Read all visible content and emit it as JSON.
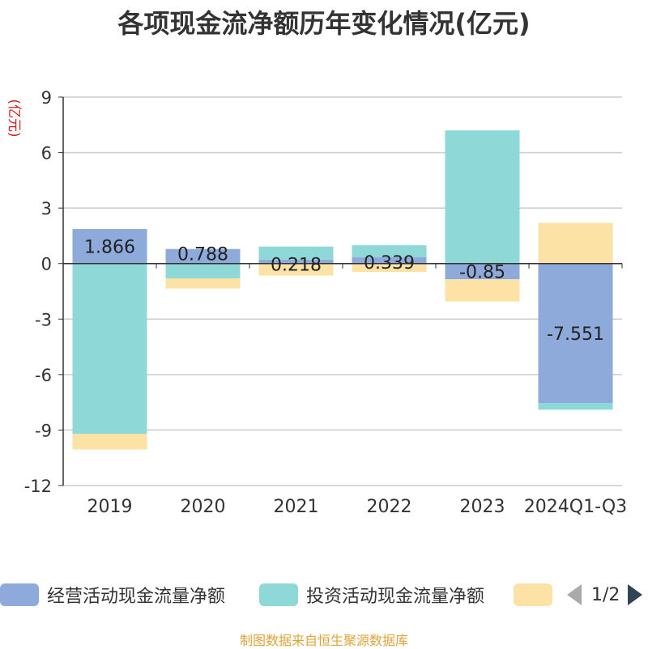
{
  "chart_data": {
    "type": "bar",
    "title": "各项现金流净额历年变化情况(亿元)",
    "ylabel": "(亿元)",
    "categories": [
      "2019",
      "2020",
      "2021",
      "2022",
      "2023",
      "2024Q1-Q3"
    ],
    "ylim": [
      -12,
      9
    ],
    "yticks": [
      9,
      6,
      3,
      0,
      -3,
      -6,
      -9,
      -12
    ],
    "grid": true,
    "stacked": true,
    "legend_position": "bottom",
    "series": [
      {
        "name": "经营活动现金流量净额",
        "color": "#8eaadb",
        "values": [
          1.866,
          0.788,
          0.218,
          0.339,
          -0.85,
          -7.551
        ],
        "labels": [
          "1.866",
          "0.788",
          "0.218",
          "0.339",
          "-0.85",
          "-7.551"
        ]
      },
      {
        "name": "投资活动现金流量净额",
        "color": "#8fd8d8",
        "values": [
          -9.2,
          -0.8,
          0.7,
          0.65,
          7.2,
          -0.35
        ]
      },
      {
        "name": "",
        "color": "#fde2a6",
        "values": [
          -0.85,
          -0.55,
          -0.65,
          -0.45,
          -1.2,
          2.2
        ]
      }
    ]
  },
  "legend": {
    "pager": "1/2"
  },
  "source": "制图数据来自恒生聚源数据库"
}
